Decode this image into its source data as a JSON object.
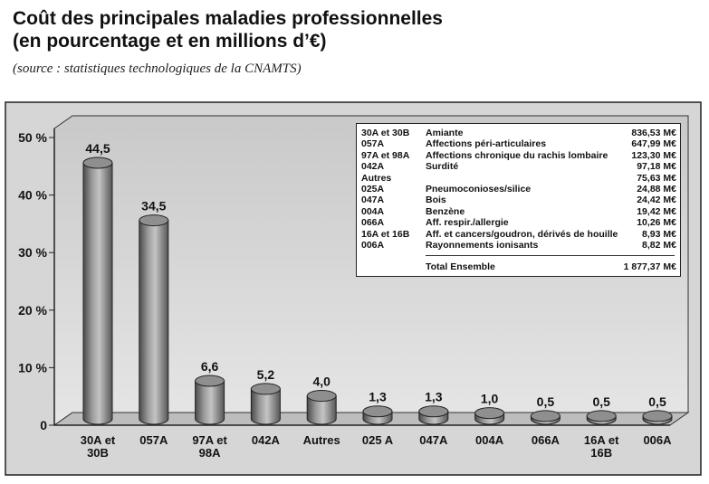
{
  "title_line1": "Coût des principales maladies professionnelles",
  "title_line2": "(en pourcentage et en millions d’€)",
  "source": "(source : statistiques technologiques de la CNAMTS)",
  "chart_data": {
    "type": "bar",
    "title": "Coût des principales maladies professionnelles (en pourcentage et en millions d’€)",
    "xlabel": "",
    "ylabel": "",
    "ylim": [
      0,
      50
    ],
    "yticks": [
      "0",
      "10 %",
      "20 %",
      "30 %",
      "40 %",
      "50 %"
    ],
    "categories": [
      [
        "30A et",
        "30B"
      ],
      [
        "057A"
      ],
      [
        "97A et",
        "98A"
      ],
      [
        "042A"
      ],
      [
        "Autres"
      ],
      [
        "025 A"
      ],
      [
        "047A"
      ],
      [
        "004A"
      ],
      [
        "066A"
      ],
      [
        "16A et",
        "16B"
      ],
      [
        "006A"
      ]
    ],
    "values": [
      44.5,
      34.5,
      6.6,
      5.2,
      4.0,
      1.3,
      1.3,
      1.0,
      0.5,
      0.5,
      0.5
    ],
    "value_labels": [
      "44,5",
      "34,5",
      "6,6",
      "5,2",
      "4,0",
      "1,3",
      "1,3",
      "1,0",
      "0,5",
      "0,5",
      "0,5"
    ],
    "legend": [
      {
        "code": "30A et 30B",
        "name": "Amiante",
        "value": "836,53 M€"
      },
      {
        "code": "057A",
        "name": "Affections péri-articulaires",
        "value": "647,99 M€"
      },
      {
        "code": "97A et 98A",
        "name": "Affections chronique du rachis lombaire",
        "value": "123,30 M€"
      },
      {
        "code": "042A",
        "name": "Surdité",
        "value": "97,18 M€"
      },
      {
        "code": "Autres",
        "name": "",
        "value": "75,63 M€"
      },
      {
        "code": "025A",
        "name": "Pneumoconioses/silice",
        "value": "24,88 M€"
      },
      {
        "code": "047A",
        "name": "Bois",
        "value": "24,42 M€"
      },
      {
        "code": "004A",
        "name": "Benzène",
        "value": "19,42 M€"
      },
      {
        "code": "066A",
        "name": "Aff. respir./allergie",
        "value": "10,26 M€"
      },
      {
        "code": "16A et 16B",
        "name": "Aff. et cancers/goudron, dérivés de houille",
        "value": "8,93 M€"
      },
      {
        "code": "006A",
        "name": "Rayonnements ionisants",
        "value": "8,82 M€"
      }
    ],
    "total": {
      "name": "Total Ensemble",
      "value": "1 877,37 M€"
    },
    "grid": false,
    "legend_position": "top-right"
  }
}
